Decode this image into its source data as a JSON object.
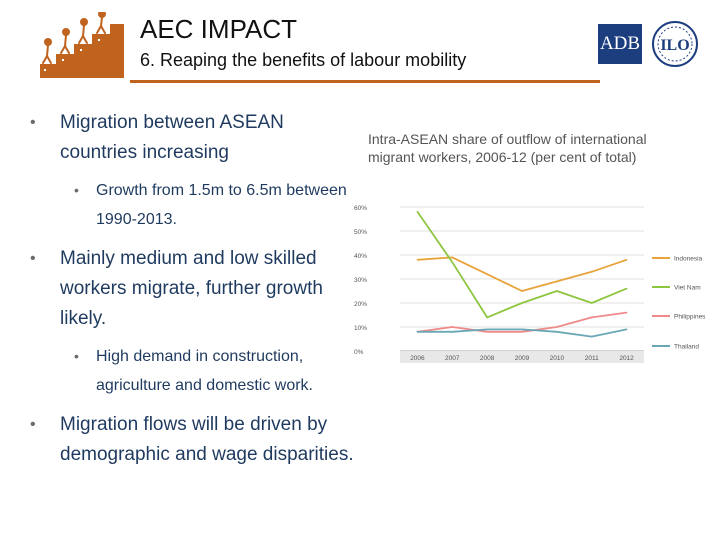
{
  "header": {
    "title": "AEC IMPACT",
    "subtitle": "6. Reaping the benefits of labour mobility"
  },
  "logos": {
    "adb_text": "ADB",
    "ilo_text": "ILO"
  },
  "bullets": [
    {
      "level": 1,
      "text": "Migration between ASEAN countries increasing"
    },
    {
      "level": 2,
      "text": "Growth from 1.5m to 6.5m between 1990-2013."
    },
    {
      "level": 1,
      "text": "Mainly medium and low skilled workers migrate, further growth likely."
    },
    {
      "level": 2,
      "text": "High demand in construction, agriculture and domestic work."
    },
    {
      "level": 1,
      "text": "Migration flows will be driven by demographic and wage disparities."
    }
  ],
  "colors": {
    "rule": "#c0631f",
    "text": "#1f3a5f",
    "indonesia": "#e8a33a",
    "vietnam": "#8dc63f",
    "philippines": "#ee8a8a",
    "thailand": "#6aa7b5"
  },
  "chart_data": {
    "type": "line",
    "title": "Intra-ASEAN share of outflow of international migrant workers, 2006-12 (per cent of total)",
    "x": [
      "2006",
      "2007",
      "2008",
      "2009",
      "2010",
      "2011",
      "2012"
    ],
    "ylim": [
      0,
      60
    ],
    "yticks": [
      "0%",
      "10%",
      "20%",
      "30%",
      "40%",
      "50%",
      "60%"
    ],
    "ytick_values": [
      0,
      10,
      20,
      30,
      40,
      50,
      60
    ],
    "grid": true,
    "legend": "right",
    "series": [
      {
        "name": "Indonesia",
        "color": "#e8a33a",
        "values": [
          38,
          39,
          32,
          25,
          29,
          33,
          38
        ]
      },
      {
        "name": "Viet Nam",
        "color": "#8dc63f",
        "values": [
          58,
          37,
          14,
          20,
          25,
          20,
          26
        ]
      },
      {
        "name": "Philippines",
        "color": "#ee8a8a",
        "values": [
          8,
          10,
          8,
          8,
          10,
          14,
          16
        ]
      },
      {
        "name": "Thailand",
        "color": "#6aa7b5",
        "values": [
          8,
          8,
          9,
          9,
          8,
          6,
          9
        ]
      }
    ]
  }
}
